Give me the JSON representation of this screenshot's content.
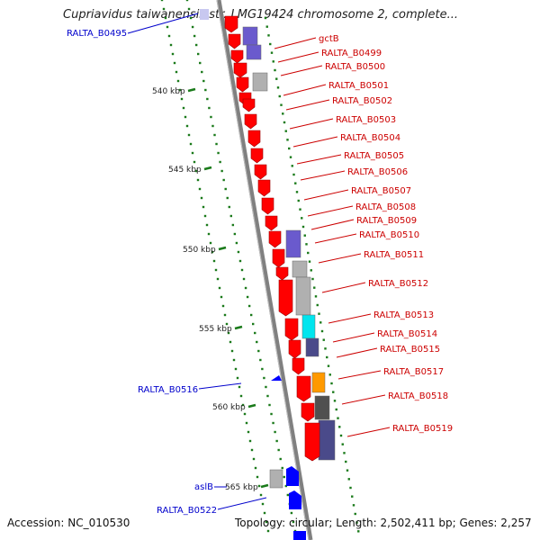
{
  "title": "Cupriavidus taiwanensis str. LMG19424 chromosome 2, complete...",
  "footer": {
    "accession": "Accession: NC_010530",
    "summary": "Topology: circular; Length: 2,502,411 bp; Genes: 2,257"
  },
  "colors": {
    "backbone": "#808080",
    "gene_red": "#ff0000",
    "gene_blue": "#0000ff",
    "label_red": "#cc0000",
    "label_blue": "#0000cc",
    "tick_green": "#1a7a1a",
    "purple": "#6a5acd",
    "gray": "#b0b0b0",
    "dark_gray": "#505050",
    "cyan": "#00e5ee",
    "orange": "#ff9900",
    "slate": "#4a4a8a"
  },
  "scale_labels": [
    "540 kbp",
    "545 kbp",
    "550 kbp",
    "555 kbp",
    "560 kbp",
    "565 kbp"
  ],
  "gene_labels_right": [
    "gctB",
    "RALTA_B0499",
    "RALTA_B0500",
    "RALTA_B0501",
    "RALTA_B0502",
    "RALTA_B0503",
    "RALTA_B0504",
    "RALTA_B0505",
    "RALTA_B0506",
    "RALTA_B0507",
    "RALTA_B0508",
    "RALTA_B0509",
    "RALTA_B0510",
    "RALTA_B0511",
    "RALTA_B0512",
    "RALTA_B0513",
    "RALTA_B0514",
    "RALTA_B0515",
    "RALTA_B0517",
    "RALTA_B0518",
    "RALTA_B0519"
  ],
  "gene_labels_left": [
    "RALTA_B0495",
    "RALTA_B0516",
    "aslB",
    "RALTA_B0522"
  ]
}
